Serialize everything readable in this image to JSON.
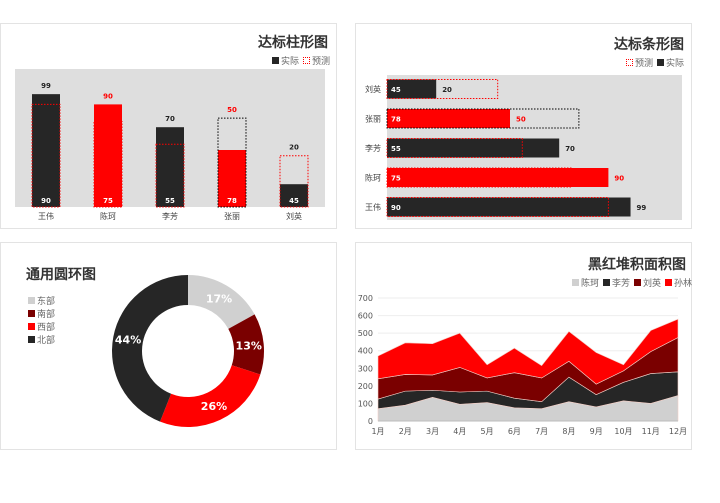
{
  "chart_data": [
    {
      "type": "bar",
      "title": "达标柱形图",
      "legend": [
        "实际",
        "预测"
      ],
      "categories": [
        "王伟",
        "陈珂",
        "李芳",
        "张丽",
        "刘英"
      ],
      "series": [
        {
          "name": "实际",
          "values": [
            99,
            90,
            70,
            50,
            20
          ]
        },
        {
          "name": "预测",
          "values": [
            90,
            75,
            55,
            78,
            45
          ]
        }
      ],
      "ylim": [
        0,
        120
      ]
    },
    {
      "type": "bar",
      "orientation": "horizontal",
      "title": "达标条形图",
      "legend": [
        "预测",
        "实际"
      ],
      "categories": [
        "刘英",
        "张丽",
        "李芳",
        "陈珂",
        "王伟"
      ],
      "series": [
        {
          "name": "实际",
          "values": [
            20,
            50,
            70,
            90,
            99
          ]
        },
        {
          "name": "预测",
          "values": [
            45,
            78,
            55,
            75,
            90
          ]
        }
      ],
      "xlim": [
        0,
        120
      ]
    },
    {
      "type": "pie",
      "title": "通用圆环图",
      "categories": [
        "东部",
        "南部",
        "西部",
        "北部"
      ],
      "values": [
        17,
        13,
        26,
        44
      ],
      "labels": [
        "17%",
        "13%",
        "26%",
        "44%"
      ]
    },
    {
      "type": "area",
      "stacked": true,
      "title": "黑红堆积面积图",
      "x": [
        "1月",
        "2月",
        "3月",
        "4月",
        "5月",
        "6月",
        "7月",
        "8月",
        "9月",
        "10月",
        "11月",
        "12月"
      ],
      "series": [
        {
          "name": "陈珂",
          "values": [
            70,
            90,
            135,
            95,
            105,
            75,
            70,
            110,
            80,
            115,
            100,
            145
          ]
        },
        {
          "name": "李芳",
          "values": [
            55,
            80,
            40,
            70,
            65,
            55,
            40,
            140,
            70,
            105,
            170,
            135
          ]
        },
        {
          "name": "刘英",
          "values": [
            115,
            95,
            87,
            140,
            75,
            145,
            135,
            90,
            60,
            65,
            125,
            195
          ]
        },
        {
          "name": "孙林",
          "values": [
            130,
            180,
            178,
            195,
            75,
            140,
            70,
            170,
            180,
            35,
            120,
            105
          ]
        }
      ],
      "ylim": [
        0,
        700
      ],
      "yticks": [
        "0",
        "100",
        "200",
        "300",
        "400",
        "500",
        "600",
        "700"
      ]
    }
  ],
  "colors": {
    "black": "#262626",
    "red": "#ff0000",
    "darkred": "#7a0000",
    "gray": "#d0d0d0"
  }
}
